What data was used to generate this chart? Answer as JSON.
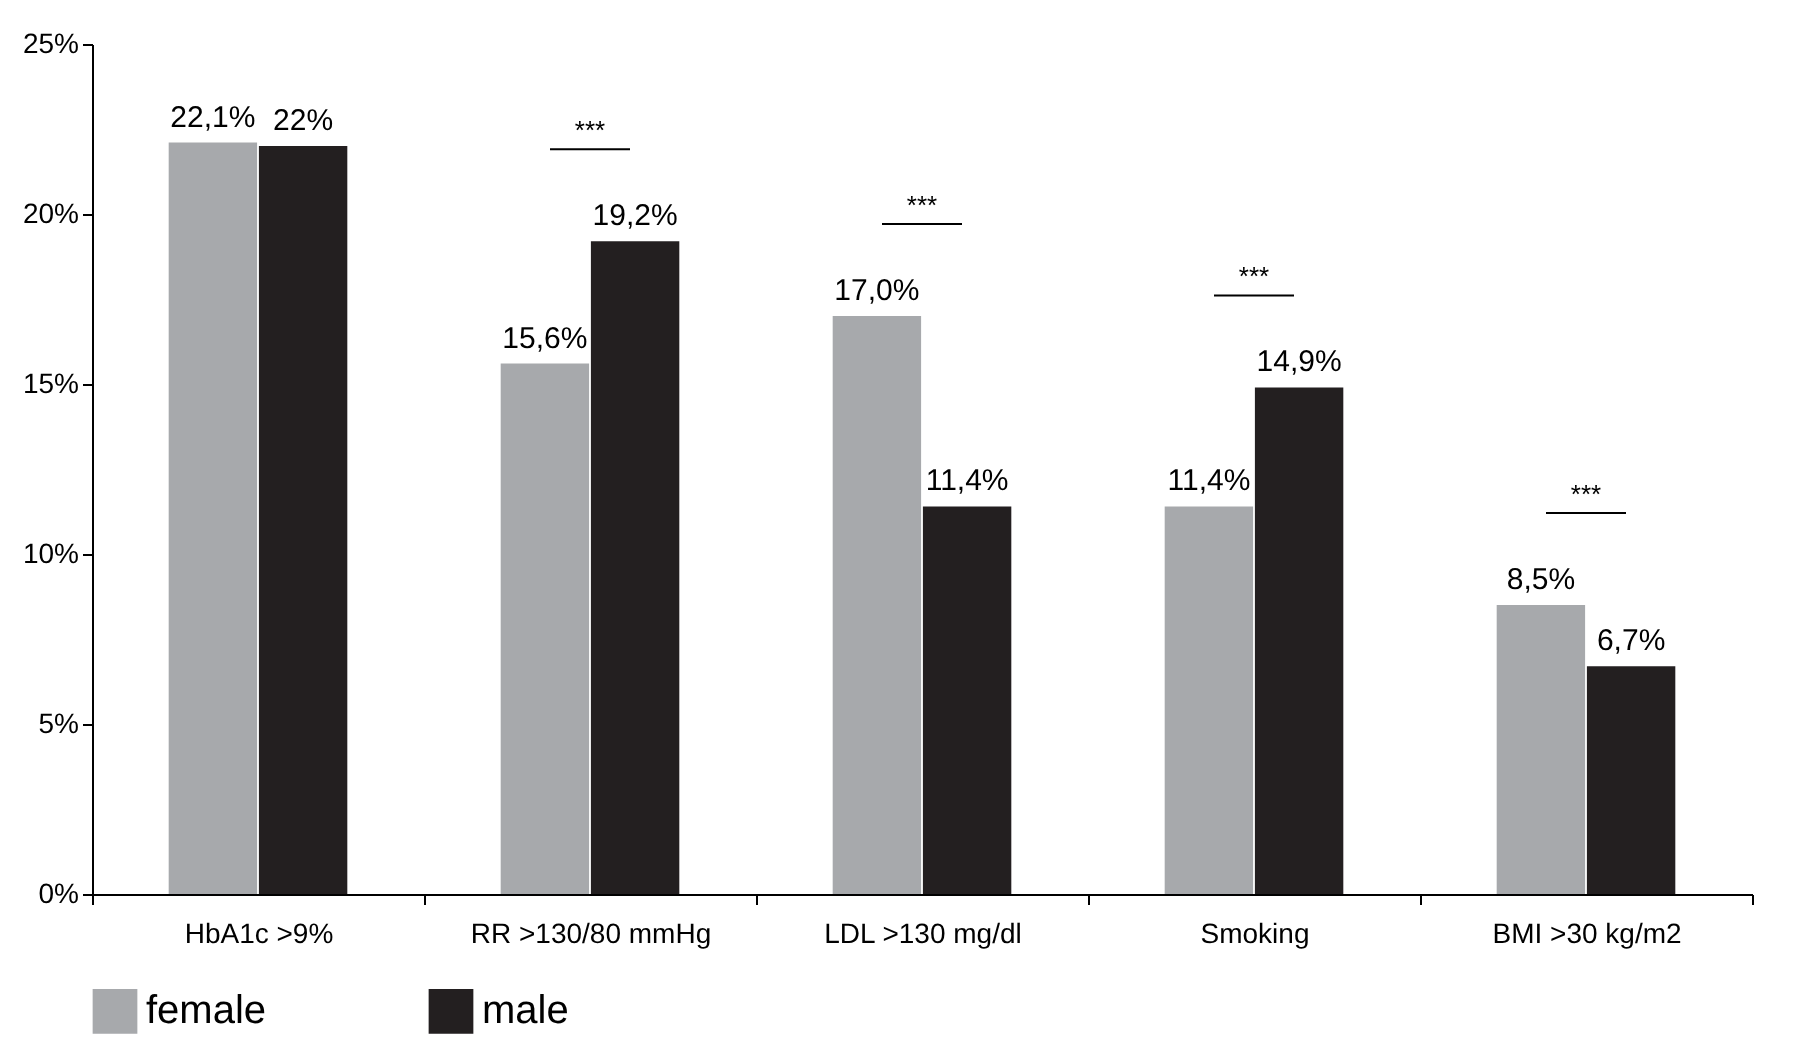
{
  "chart_data": {
    "type": "bar",
    "categories": [
      "HbA1c >9%",
      "RR >130/80 mmHg",
      "LDL >130 mg/dl",
      "Smoking",
      "BMI >30 kg/m2"
    ],
    "series": [
      {
        "name": "female",
        "color": "#a7a9ac",
        "values": [
          22.1,
          15.6,
          17.0,
          11.4,
          8.5
        ],
        "value_labels": [
          "22,1%",
          "15,6%",
          "17,0%",
          "11,4%",
          "8,5%"
        ]
      },
      {
        "name": "male",
        "color": "#231f20",
        "values": [
          22,
          19.2,
          11.4,
          14.9,
          6.7
        ],
        "value_labels": [
          "22%",
          "19,2%",
          "11,4%",
          "14,9%",
          "6,7%"
        ]
      }
    ],
    "ylim": [
      0,
      25
    ],
    "yticks": [
      {
        "value": 0,
        "label": "0%"
      },
      {
        "value": 5,
        "label": "5%"
      },
      {
        "value": 10,
        "label": "10%"
      },
      {
        "value": 15,
        "label": "15%"
      },
      {
        "value": 20,
        "label": "20%"
      },
      {
        "value": 25,
        "label": "25%"
      }
    ],
    "annotations": [
      "***",
      "***",
      "***",
      "***"
    ],
    "grid": false,
    "legend": "bottom"
  }
}
